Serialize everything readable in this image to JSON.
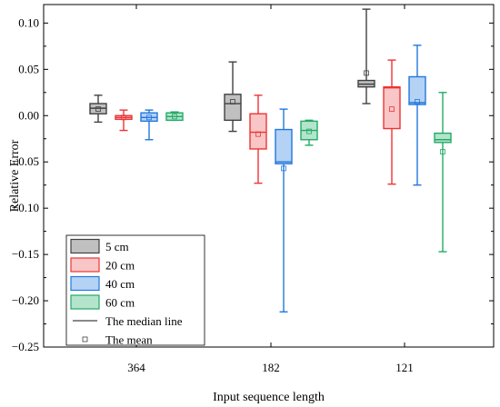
{
  "chart_data": {
    "type": "box",
    "xlabel": "Input sequence length",
    "ylabel": "Relative Error",
    "categories": [
      "364",
      "182",
      "121"
    ],
    "ylim": [
      -0.25,
      0.12
    ],
    "yticks": [
      0.1,
      0.05,
      0.0,
      -0.05,
      -0.1,
      -0.15,
      -0.2,
      -0.25
    ],
    "ytick_labels": [
      "0.10",
      "0.05",
      "0.00",
      "−0.05",
      "−0.10",
      "−0.15",
      "−0.20",
      "−0.25"
    ],
    "legend_position": "bottom-left",
    "series": [
      {
        "name": "5   cm",
        "edge_color": "#404040",
        "fill_color": "#c0c0c0",
        "boxes": [
          {
            "min": -0.007,
            "q1": 0.002,
            "median": 0.008,
            "q3": 0.013,
            "max": 0.022,
            "mean": 0.007
          },
          {
            "min": -0.017,
            "q1": -0.005,
            "median": 0.013,
            "q3": 0.023,
            "max": 0.058,
            "mean": 0.015
          },
          {
            "min": 0.013,
            "q1": 0.031,
            "median": 0.034,
            "q3": 0.038,
            "max": 0.115,
            "mean": 0.046
          }
        ]
      },
      {
        "name": "20 cm",
        "edge_color": "#ee3333",
        "fill_color": "#f8c6c6",
        "boxes": [
          {
            "min": -0.016,
            "q1": -0.004,
            "median": -0.002,
            "q3": 0.0,
            "max": 0.006,
            "mean": -0.002
          },
          {
            "min": -0.073,
            "q1": -0.036,
            "median": -0.018,
            "q3": 0.002,
            "max": 0.022,
            "mean": -0.02
          },
          {
            "min": -0.074,
            "q1": -0.014,
            "median": 0.03,
            "q3": 0.031,
            "max": 0.06,
            "mean": 0.007
          }
        ]
      },
      {
        "name": "40 cm",
        "edge_color": "#2277dd",
        "fill_color": "#b4d2f4",
        "boxes": [
          {
            "min": -0.026,
            "q1": -0.006,
            "median": -0.002,
            "q3": 0.003,
            "max": 0.006,
            "mean": -0.002
          },
          {
            "min": -0.212,
            "q1": -0.052,
            "median": -0.05,
            "q3": -0.015,
            "max": 0.007,
            "mean": -0.057
          },
          {
            "min": -0.075,
            "q1": 0.012,
            "median": 0.014,
            "q3": 0.042,
            "max": 0.076,
            "mean": 0.015
          }
        ]
      },
      {
        "name": "60 cm",
        "edge_color": "#22aa66",
        "fill_color": "#b4e4cc",
        "boxes": [
          {
            "min": -0.005,
            "q1": -0.005,
            "median": -0.001,
            "q3": 0.003,
            "max": 0.004,
            "mean": -0.001
          },
          {
            "min": -0.032,
            "q1": -0.026,
            "median": -0.016,
            "q3": -0.006,
            "max": -0.005,
            "mean": -0.017
          },
          {
            "min": -0.147,
            "q1": -0.029,
            "median": -0.026,
            "q3": -0.019,
            "max": 0.025,
            "mean": -0.039
          }
        ]
      }
    ],
    "legend_extra": [
      {
        "kind": "line",
        "label": "The median line"
      },
      {
        "kind": "marker",
        "label": "The mean"
      }
    ]
  }
}
